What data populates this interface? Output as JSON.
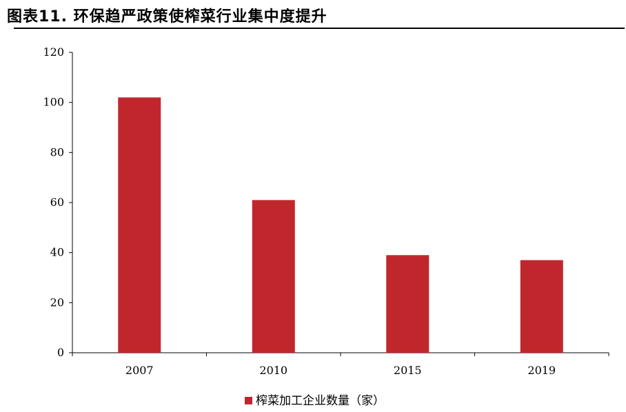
{
  "figure": {
    "title": "图表11. 环保趋严政策使榨菜行业集中度提升"
  },
  "chart_data": {
    "type": "bar",
    "categories": [
      "2007",
      "2010",
      "2015",
      "2019"
    ],
    "series": [
      {
        "name": "榨菜加工企业数量（家）",
        "values": [
          102,
          61,
          39,
          37
        ],
        "color": "#C0272D"
      }
    ],
    "ylim": [
      0,
      120
    ],
    "yticks": [
      "0",
      "20",
      "40",
      "60",
      "80",
      "100",
      "120"
    ],
    "xlabel": "",
    "ylabel": "",
    "grid": false,
    "legend": {
      "position": "bottom-center"
    }
  }
}
